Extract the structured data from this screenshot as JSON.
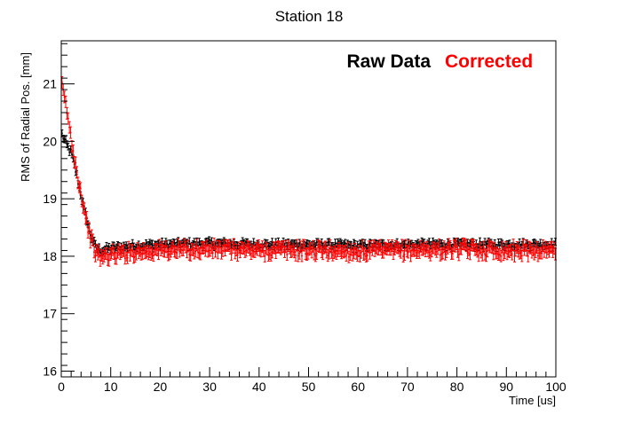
{
  "chart_data": {
    "type": "scatter",
    "title": "Station 18",
    "xlabel": "Time [us]",
    "ylabel": "RMS of Radial Pos. [mm]",
    "xlim": [
      0,
      100
    ],
    "ylim": [
      15.9,
      21.75
    ],
    "x_ticks": [
      0,
      10,
      20,
      30,
      40,
      50,
      60,
      70,
      80,
      90,
      100
    ],
    "y_ticks": [
      16,
      17,
      18,
      19,
      20,
      21
    ],
    "x_tick_labels": [
      "0",
      "10",
      "20",
      "30",
      "40",
      "50",
      "60",
      "70",
      "80",
      "90",
      "100"
    ],
    "y_tick_labels": [
      "16",
      "17",
      "18",
      "19",
      "20",
      "21"
    ],
    "grid": false,
    "legend_placement": "top-right",
    "series": [
      {
        "name": "Raw Data",
        "color": "#000000",
        "error_bar": 0.06,
        "x": [
          0,
          1,
          2,
          3,
          4,
          5,
          6,
          7,
          8,
          9,
          10,
          15,
          20,
          30,
          40,
          50,
          60,
          70,
          80,
          90,
          100
        ],
        "y": [
          20.15,
          19.95,
          19.8,
          19.45,
          19.05,
          18.7,
          18.35,
          18.15,
          18.1,
          18.12,
          18.14,
          18.18,
          18.2,
          18.22,
          18.2,
          18.2,
          18.18,
          18.2,
          18.2,
          18.2,
          18.2
        ]
      },
      {
        "name": "Corrected",
        "color": "#ff0000",
        "error_bar": 0.1,
        "x": [
          0,
          1,
          2,
          3,
          4,
          5,
          6,
          7,
          8,
          9,
          10,
          15,
          20,
          30,
          40,
          50,
          60,
          70,
          80,
          90,
          100
        ],
        "y": [
          21.0,
          20.6,
          20.05,
          19.55,
          19.1,
          18.65,
          18.3,
          18.05,
          17.98,
          18.0,
          18.02,
          18.08,
          18.1,
          18.12,
          18.1,
          18.1,
          18.08,
          18.1,
          18.12,
          18.1,
          18.1
        ]
      }
    ]
  }
}
